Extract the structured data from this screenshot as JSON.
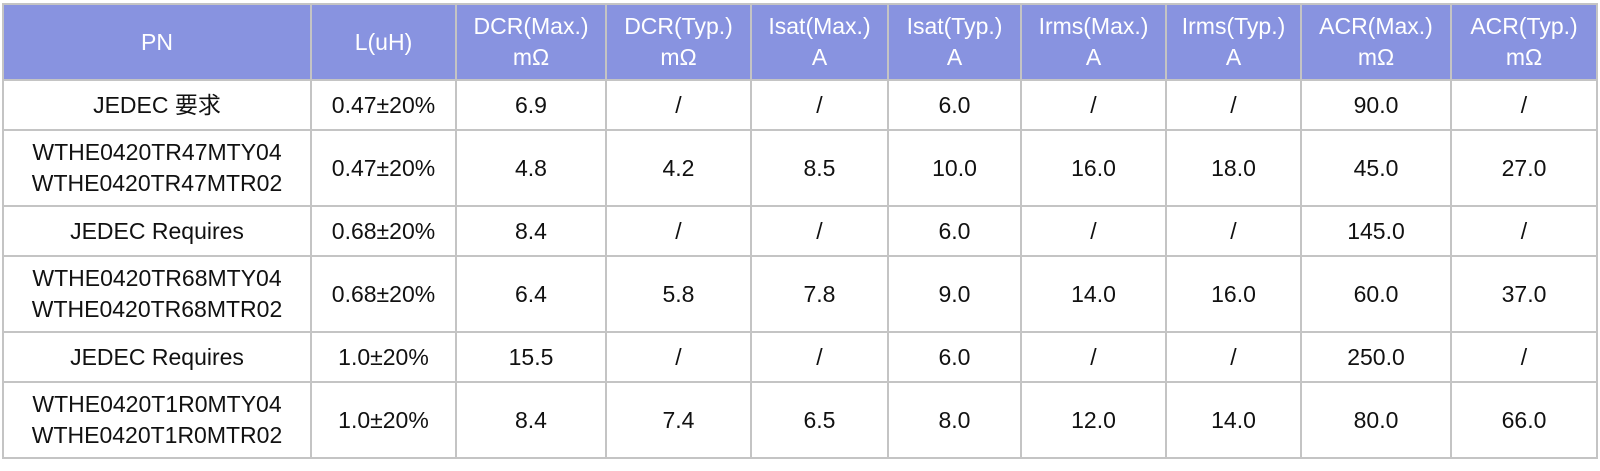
{
  "table": {
    "header": [
      [
        "PN"
      ],
      [
        "L(uH)"
      ],
      [
        "DCR(Max.)",
        "mΩ"
      ],
      [
        "DCR(Typ.)",
        "mΩ"
      ],
      [
        "Isat(Max.)",
        "A"
      ],
      [
        "Isat(Typ.)",
        "A"
      ],
      [
        "Irms(Max.)",
        "A"
      ],
      [
        "Irms(Typ.)",
        "A"
      ],
      [
        "ACR(Max.)",
        "mΩ"
      ],
      [
        "ACR(Typ.)",
        "mΩ"
      ]
    ],
    "rows": [
      [
        [
          "JEDEC 要求"
        ],
        [
          "0.47±20%"
        ],
        [
          "6.9"
        ],
        [
          "/"
        ],
        [
          "/"
        ],
        [
          "6.0"
        ],
        [
          "/"
        ],
        [
          "/"
        ],
        [
          "90.0"
        ],
        [
          "/"
        ]
      ],
      [
        [
          "WTHE0420TR47MTY04",
          "WTHE0420TR47MTR02"
        ],
        [
          "0.47±20%"
        ],
        [
          "4.8"
        ],
        [
          "4.2"
        ],
        [
          "8.5"
        ],
        [
          "10.0"
        ],
        [
          "16.0"
        ],
        [
          "18.0"
        ],
        [
          "45.0"
        ],
        [
          "27.0"
        ]
      ],
      [
        [
          "JEDEC Requires"
        ],
        [
          "0.68±20%"
        ],
        [
          "8.4"
        ],
        [
          "/"
        ],
        [
          "/"
        ],
        [
          "6.0"
        ],
        [
          "/"
        ],
        [
          "/"
        ],
        [
          "145.0"
        ],
        [
          "/"
        ]
      ],
      [
        [
          "WTHE0420TR68MTY04",
          "WTHE0420TR68MTR02"
        ],
        [
          "0.68±20%"
        ],
        [
          "6.4"
        ],
        [
          "5.8"
        ],
        [
          "7.8"
        ],
        [
          "9.0"
        ],
        [
          "14.0"
        ],
        [
          "16.0"
        ],
        [
          "60.0"
        ],
        [
          "37.0"
        ]
      ],
      [
        [
          "JEDEC Requires"
        ],
        [
          "1.0±20%"
        ],
        [
          "15.5"
        ],
        [
          "/"
        ],
        [
          "/"
        ],
        [
          "6.0"
        ],
        [
          "/"
        ],
        [
          "/"
        ],
        [
          "250.0"
        ],
        [
          "/"
        ]
      ],
      [
        [
          "WTHE0420T1R0MTY04",
          "WTHE0420T1R0MTR02"
        ],
        [
          "1.0±20%"
        ],
        [
          "8.4"
        ],
        [
          "7.4"
        ],
        [
          "6.5"
        ],
        [
          "8.0"
        ],
        [
          "12.0"
        ],
        [
          "14.0"
        ],
        [
          "80.0"
        ],
        [
          "66.0"
        ]
      ]
    ]
  }
}
